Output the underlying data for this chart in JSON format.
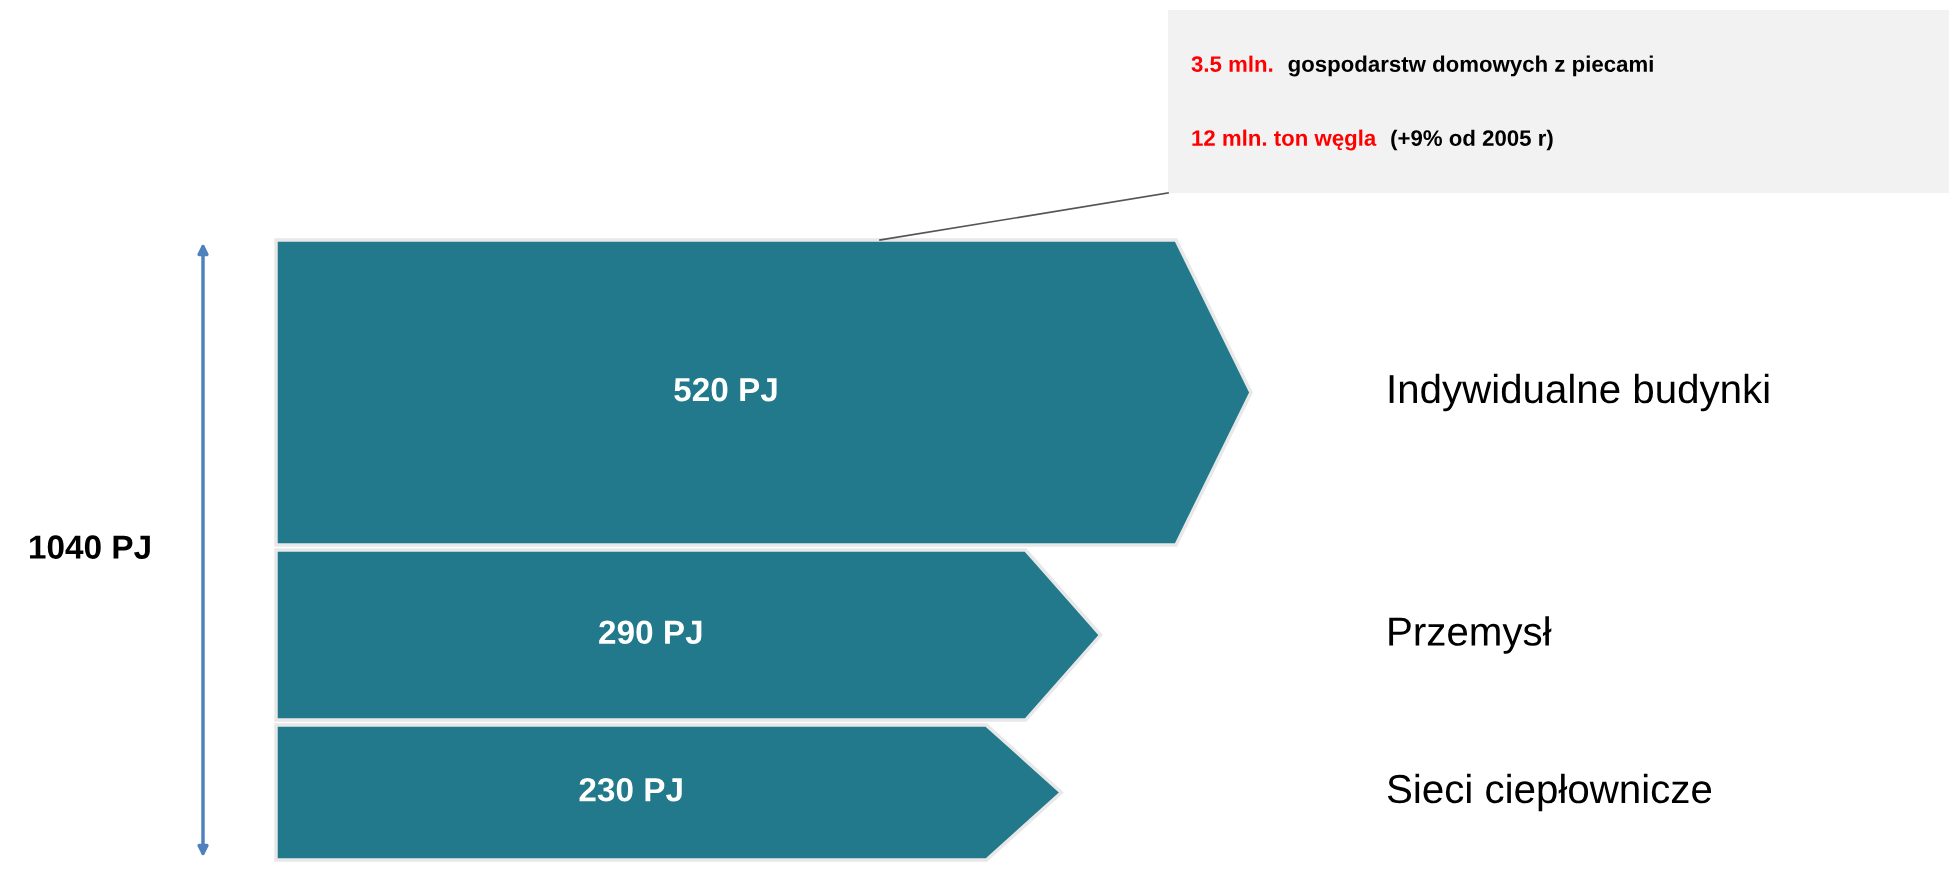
{
  "chart_data": {
    "type": "other",
    "categories": [
      "Indywidualne budynki",
      "Przemysł",
      "Sieci ciepłownicze"
    ],
    "values": [
      520,
      290,
      230
    ],
    "value_labels": [
      "520 PJ",
      "290 PJ",
      "230 PJ"
    ],
    "colors": [
      "#21798b",
      "#21798b",
      "#21798b"
    ],
    "totals": [
      "1040 PJ"
    ],
    "annotations": [
      "3.5 mln.",
      "gospodarstw domowych z piecami",
      "12 mln. ton węgla",
      "(+9% od 2005 r)"
    ]
  }
}
